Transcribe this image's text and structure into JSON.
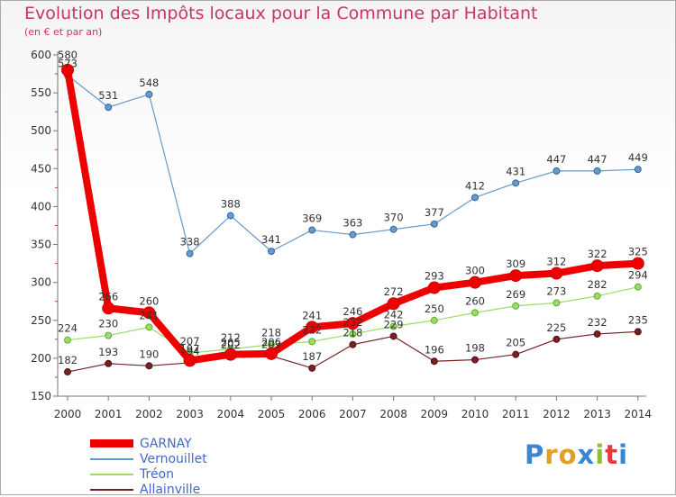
{
  "header": {
    "title": "Evolution des Impôts locaux pour la Commune par Habitant",
    "subtitle": "(en € et par an)"
  },
  "logo": {
    "text": "Proxiti",
    "colors": [
      "#3a86d6",
      "#e0a020",
      "#e0a020",
      "#3a86d6",
      "#90c030",
      "#e03c3c",
      "#3a86d6"
    ]
  },
  "chart_data": {
    "type": "line",
    "x": [
      "2000",
      "2001",
      "2002",
      "2003",
      "2004",
      "2005",
      "2006",
      "2007",
      "2008",
      "2009",
      "2010",
      "2011",
      "2012",
      "2013",
      "2014"
    ],
    "ylim": [
      150,
      600
    ],
    "yticks": [
      150,
      200,
      250,
      300,
      350,
      400,
      450,
      500,
      550,
      600
    ],
    "grid": false,
    "legend_position": "bottom-left",
    "series": [
      {
        "name": "GARNAY",
        "color": "#ee0000",
        "values": [
          580,
          266,
          260,
          197,
          205,
          206,
          241,
          246,
          272,
          293,
          300,
          309,
          312,
          322,
          325
        ],
        "labels": [
          "580",
          "266",
          "260",
          "197",
          "205",
          "206",
          "241",
          "246",
          "272",
          "293",
          "300",
          "309",
          "312",
          "322",
          "325"
        ]
      },
      {
        "name": "Vernouillet",
        "color": "#6699cc",
        "values": [
          573,
          531,
          548,
          338,
          388,
          341,
          369,
          363,
          370,
          377,
          412,
          431,
          447,
          447,
          449
        ],
        "labels": [
          "573",
          "531",
          "548",
          "338",
          "388",
          "341",
          "369",
          "363",
          "370",
          "377",
          "412",
          "431",
          "447",
          "447",
          "449"
        ]
      },
      {
        "name": "Tréon",
        "color": "#99dd66",
        "values": [
          224,
          230,
          241,
          207,
          212,
          218,
          222,
          232,
          242,
          250,
          260,
          269,
          273,
          282,
          294
        ],
        "labels": [
          "224",
          "230",
          "241",
          "207",
          "212",
          "218",
          "222",
          "232",
          "242",
          "250",
          "260",
          "269",
          "273",
          "282",
          "294"
        ]
      },
      {
        "name": "Allainville",
        "color": "#772222",
        "values": [
          182,
          193,
          190,
          194,
          202,
          203,
          187,
          218,
          229,
          196,
          198,
          205,
          225,
          232,
          235
        ],
        "labels": [
          "182",
          "193",
          "190",
          "194",
          "202",
          "203",
          "187",
          "218",
          "229",
          "196",
          "198",
          "205",
          "225",
          "232",
          "235"
        ]
      }
    ]
  }
}
